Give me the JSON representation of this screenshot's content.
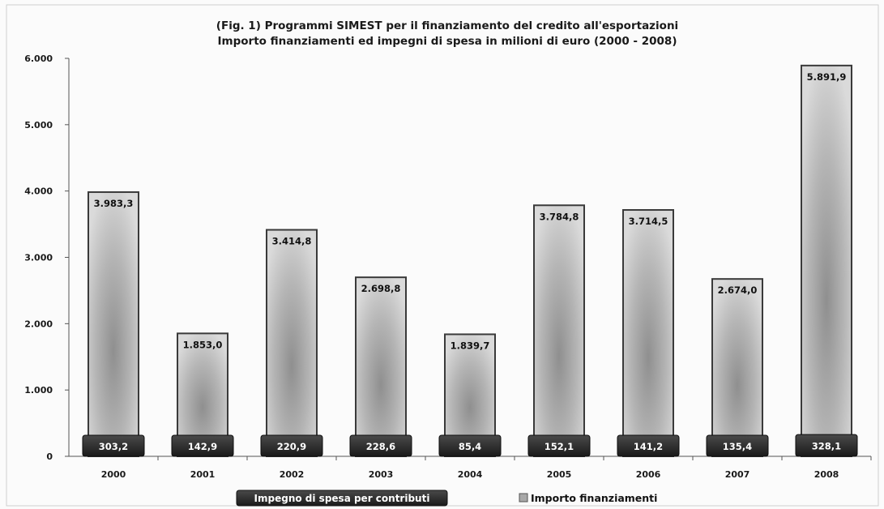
{
  "chart_data": {
    "type": "bar",
    "title": "(Fig. 1) Programmi SIMEST per il finanziamento del credito  all'esportazioni",
    "subtitle": "Importo finanziamenti ed impegni di spesa in milioni di euro (2000 - 2008)",
    "xlabel": "",
    "ylabel": "",
    "categories": [
      "2000",
      "2001",
      "2002",
      "2003",
      "2004",
      "2005",
      "2006",
      "2007",
      "2008"
    ],
    "ylim": [
      0,
      6000
    ],
    "yticks": [
      0,
      1000,
      2000,
      3000,
      4000,
      5000,
      6000
    ],
    "ytick_labels": [
      "0",
      "1.000",
      "2.000",
      "3.000",
      "4.000",
      "5.000",
      "6.000"
    ],
    "grid": false,
    "legend_position": "bottom",
    "series": [
      {
        "name": "Impegno di spesa per contributi",
        "values": [
          303.2,
          142.9,
          220.9,
          228.6,
          85.4,
          152.1,
          141.2,
          135.4,
          328.1
        ],
        "labels": [
          "303,2",
          "142,9",
          "220,9",
          "228,6",
          "85,4",
          "152,1",
          "141,2",
          "135,4",
          "328,1"
        ],
        "color": "#2b2b2b"
      },
      {
        "name": "Importo finanziamenti",
        "values": [
          3983.3,
          1853.0,
          3414.8,
          2698.8,
          1839.7,
          3784.8,
          3714.5,
          2674.0,
          5891.9
        ],
        "labels": [
          "3.983,3",
          "1.853,0",
          "3.414,8",
          "2.698,8",
          "1.839,7",
          "3.784,8",
          "3.714,5",
          "2.674,0",
          "5.891,9"
        ],
        "color": "#a8a8a8"
      }
    ]
  }
}
